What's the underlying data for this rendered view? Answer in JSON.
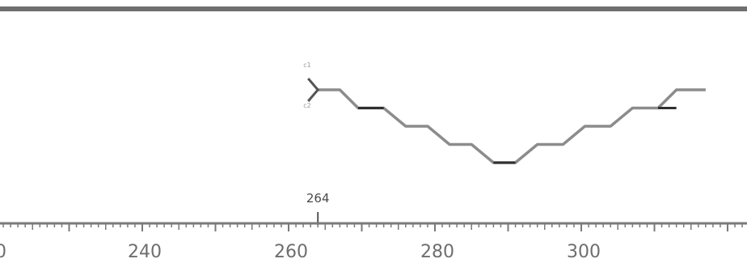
{
  "ruler": {
    "tick_labels": [
      "240",
      "260",
      "280",
      "300"
    ],
    "partial_left_label": "0"
  },
  "marker": {
    "label": "264",
    "position": 264
  },
  "trace": {
    "start_labels": [
      "c1",
      "c2"
    ],
    "profile": [
      {
        "x": 264.0,
        "level": 0
      },
      {
        "x": 267.0,
        "level": 0
      },
      {
        "x": 269.5,
        "level": 1
      },
      {
        "x": 273.0,
        "level": 1
      },
      {
        "x": 276.0,
        "level": 2
      },
      {
        "x": 279.0,
        "level": 2
      },
      {
        "x": 282.0,
        "level": 3
      },
      {
        "x": 285.0,
        "level": 3
      },
      {
        "x": 288.0,
        "level": 4
      },
      {
        "x": 291.0,
        "level": 4
      },
      {
        "x": 294.0,
        "level": 3
      },
      {
        "x": 297.5,
        "level": 3
      },
      {
        "x": 300.5,
        "level": 2
      },
      {
        "x": 304.0,
        "level": 2
      },
      {
        "x": 307.0,
        "level": 1
      },
      {
        "x": 310.5,
        "level": 1
      },
      {
        "x": 313.0,
        "level": 0
      },
      {
        "x": 317.0,
        "level": 0
      }
    ],
    "dark_segments": [
      [
        269.5,
        273.0
      ],
      [
        288.0,
        291.0
      ],
      [
        310.5,
        313.0
      ]
    ]
  },
  "colors": {
    "top_bar": "#6f6f6f",
    "ruler": "#7a7a7a",
    "trace": "#8c8c8c",
    "trace_dark": "#2f2f2f",
    "label": "#6e6e6e"
  }
}
